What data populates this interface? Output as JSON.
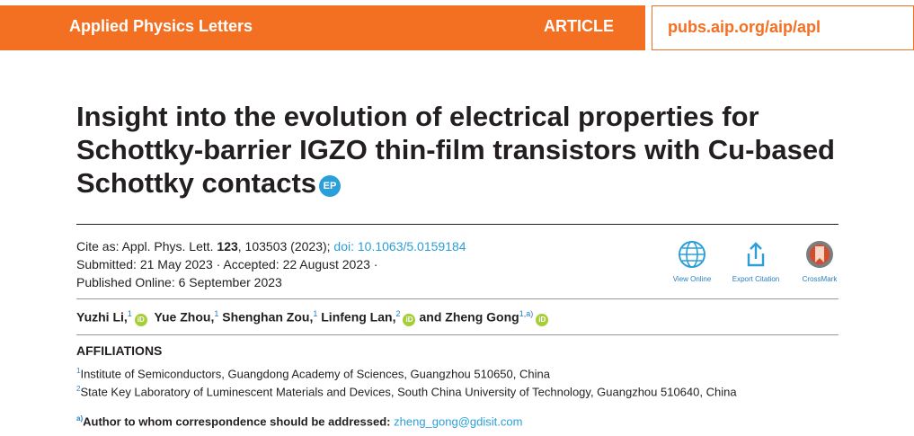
{
  "header": {
    "journal": "Applied Physics Letters",
    "section": "ARTICLE",
    "url": "pubs.aip.org/aip/apl",
    "brand_color": "#f36f21"
  },
  "title": {
    "text": "Insight into the evolution of electrical properties for Schottky-barrier IGZO thin-film transistors with Cu-based Schottky contacts",
    "badge": "EP"
  },
  "citation": {
    "cite_prefix": "Cite as: Appl. Phys. Lett. ",
    "volume": "123",
    "pages": ", 103503 (2023); ",
    "doi": "doi: 10.1063/5.0159184",
    "submitted": "Submitted: 21 May 2023 · Accepted: 22 August 2023 ·",
    "published": "Published Online: 6 September 2023"
  },
  "tools": [
    {
      "label": "View Online",
      "icon": "globe-icon"
    },
    {
      "label": "Export Citation",
      "icon": "export-icon"
    },
    {
      "label": "CrossMark",
      "icon": "crossmark-icon"
    }
  ],
  "authors": [
    {
      "name": "Yuzhi Li,",
      "aff": "1",
      "orcid": "iD"
    },
    {
      "name": "Yue Zhou,",
      "aff": "1"
    },
    {
      "name": "Shenghan Zou,",
      "aff": "1"
    },
    {
      "name": "Linfeng Lan,",
      "aff": "2",
      "orcid": "iD"
    },
    {
      "name": "and Zheng Gong",
      "aff": "1,a)",
      "orcid": "iD"
    }
  ],
  "affiliations": {
    "heading": "AFFILIATIONS",
    "items": [
      {
        "num": "1",
        "text": "Institute of Semiconductors, Guangdong Academy of Sciences, Guangzhou 510650, China"
      },
      {
        "num": "2",
        "text": "State Key Laboratory of Luminescent Materials and Devices, South China University of Technology, Guangzhou 510640, China"
      }
    ]
  },
  "correspondence": {
    "mark": "a)",
    "label": "Author to whom correspondence should be addressed: ",
    "email": "zheng_gong@gdisit.com"
  }
}
